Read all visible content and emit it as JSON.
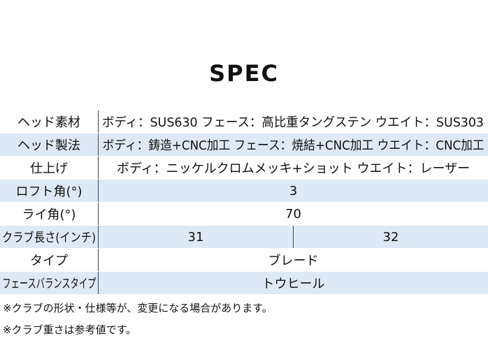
{
  "title": "SPEC",
  "table": {
    "rows": [
      {
        "label": "ヘッド素材",
        "values": [
          "ボディ：SUS630  フェース：高比重タングステン  ウエイト：SUS303"
        ]
      },
      {
        "label": "ヘッド製法",
        "values": [
          "ボディ：鋳造+CNC加工  フェース：焼結+CNC加工  ウエイト：CNC加工"
        ]
      },
      {
        "label": "仕上げ",
        "values": [
          "ボディ：ニッケルクロムメッキ+ショット  ウエイト：レーザー"
        ]
      },
      {
        "label": "ロフト角(°)",
        "values": [
          "3"
        ]
      },
      {
        "label": "ライ角(°)",
        "values": [
          "70"
        ]
      },
      {
        "label": "クラブ長さ(インチ)",
        "values": [
          "31",
          "32"
        ]
      },
      {
        "label": "タイプ",
        "values": [
          "ブレード"
        ]
      },
      {
        "label": "フェースバランスタイプ",
        "values": [
          "トウヒール"
        ]
      }
    ]
  },
  "notes": [
    "※クラブの形状・仕様等が、変更になる場合があります。",
    "※クラブ重さは参考値です。"
  ]
}
